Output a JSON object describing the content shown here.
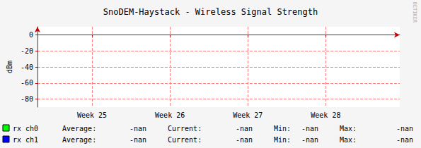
{
  "chart_data": {
    "type": "line",
    "title": "SnoDEM-Haystack - Wireless Signal Strength",
    "y_label": "dBm",
    "watermark": "RRDTOOL / TOBI OETIKER",
    "x": [
      25,
      26,
      27,
      28
    ],
    "xlim": [
      24.3,
      28.95
    ],
    "xticks": [
      {
        "value": 25,
        "label": "Week 25"
      },
      {
        "value": 26,
        "label": "Week 26"
      },
      {
        "value": 27,
        "label": "Week 27"
      },
      {
        "value": 28,
        "label": "Week 28"
      }
    ],
    "ylim": [
      -90,
      10
    ],
    "yticks": [
      0,
      -20,
      -40,
      -60,
      -80
    ],
    "grid": true,
    "series": [
      {
        "name": "rx ch0",
        "color": "#00ff00",
        "values": [
          null,
          null,
          null,
          null
        ],
        "stats": [
          {
            "label": "Average:",
            "value": "-nan"
          },
          {
            "label": "Current:",
            "value": "-nan"
          },
          {
            "label": "Min:",
            "value": "-nan"
          },
          {
            "label": "Max:",
            "value": "-nan"
          }
        ]
      },
      {
        "name": "rx ch1",
        "color": "#0000ff",
        "values": [
          null,
          null,
          null,
          null
        ],
        "stats": [
          {
            "label": "Average:",
            "value": "-nan"
          },
          {
            "label": "Current:",
            "value": "-nan"
          },
          {
            "label": "Min:",
            "value": "-nan"
          },
          {
            "label": "Max:",
            "value": "-nan"
          }
        ]
      }
    ]
  }
}
